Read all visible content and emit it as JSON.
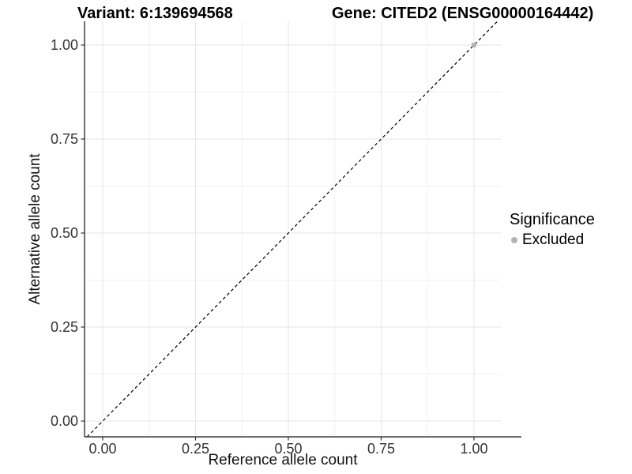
{
  "titles": {
    "variant": "Variant: 6:139694568",
    "gene": "Gene: CITED2 (ENSG00000164442)"
  },
  "axes": {
    "x": {
      "label": "Reference allele count",
      "tick_labels": [
        "0.00",
        "0.25",
        "0.50",
        "0.75",
        "1.00"
      ]
    },
    "y": {
      "label": "Alternative allele count",
      "tick_labels": [
        "0.00",
        "0.25",
        "0.50",
        "0.75",
        "1.00"
      ]
    }
  },
  "legend": {
    "title": "Significance",
    "items": [
      {
        "label": "Excluded",
        "color": "#b3b3b3",
        "marker": "circle"
      }
    ]
  },
  "chart_data": {
    "type": "scatter",
    "title": "Variant: 6:139694568 | Gene: CITED2 (ENSG00000164442)",
    "xlabel": "Reference allele count",
    "ylabel": "Alternative allele count",
    "xlim": [
      -0.05,
      1.08
    ],
    "ylim": [
      -0.04,
      1.06
    ],
    "x_ticks": [
      0,
      0.25,
      0.5,
      0.75,
      1.0
    ],
    "y_ticks": [
      0,
      0.25,
      0.5,
      0.75,
      1.0
    ],
    "grid": "major+minor",
    "legend_position": "right",
    "series": [
      {
        "name": "Excluded",
        "color": "#b3b3b3",
        "points": [
          {
            "x": 1.0,
            "y": 1.0
          }
        ]
      }
    ],
    "reference_line": {
      "style": "dashed",
      "slope": 1,
      "intercept": 0,
      "color": "#000000"
    }
  },
  "style_colors": {
    "point_gray": "#b3b3b3",
    "grid_major": "#e6e6e6",
    "grid_minor": "#f1f1f1",
    "axis_line": "#404040",
    "tick_mark": "#333333",
    "dashed_line": "#000000"
  }
}
